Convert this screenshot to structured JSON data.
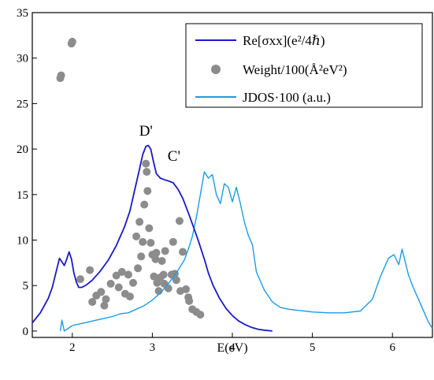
{
  "chart_data": {
    "type": "line",
    "title": "",
    "xlabel": "E(eV)",
    "ylabel": "",
    "xlim": [
      1.5,
      6.5
    ],
    "ylim": [
      -0.7,
      35
    ],
    "grid": false,
    "legend_position": "top-right",
    "x_ticks": [
      "2",
      "3",
      "4",
      "5",
      "6"
    ],
    "y_ticks": [
      "0",
      "5",
      "10",
      "15",
      "20",
      "25",
      "30",
      "35"
    ],
    "annotations": [
      {
        "text": "D'",
        "x": 2.92,
        "y": 21.5
      },
      {
        "text": "C'",
        "x": 3.27,
        "y": 18.7
      }
    ],
    "colors": {
      "sigma": "#1a1ac8",
      "weight": "#8c8c8c",
      "jdos": "#1e9be6"
    },
    "series": [
      {
        "name": "Re[σxx](e²/4ℏ)",
        "kind": "line",
        "x": [
          1.5,
          1.6,
          1.7,
          1.75,
          1.8,
          1.84,
          1.87,
          1.9,
          1.93,
          1.96,
          1.99,
          2.02,
          2.05,
          2.08,
          2.12,
          2.18,
          2.25,
          2.35,
          2.45,
          2.55,
          2.65,
          2.72,
          2.78,
          2.84,
          2.88,
          2.92,
          2.95,
          2.98,
          3.01,
          3.05,
          3.1,
          3.16,
          3.2,
          3.26,
          3.32,
          3.38,
          3.45,
          3.52,
          3.58,
          3.62,
          3.66,
          3.7,
          3.76,
          3.84,
          3.92,
          4.0,
          4.08,
          4.16,
          4.24,
          4.32,
          4.4,
          4.5
        ],
        "y": [
          0.9,
          2.0,
          3.6,
          4.8,
          6.6,
          8.0,
          7.6,
          7.2,
          7.9,
          8.7,
          7.9,
          6.4,
          5.4,
          4.8,
          4.8,
          5.1,
          5.6,
          6.6,
          7.8,
          9.4,
          11.4,
          13.2,
          15.5,
          17.8,
          19.4,
          20.3,
          20.4,
          20.0,
          18.8,
          17.3,
          16.8,
          16.6,
          16.5,
          16.3,
          15.6,
          14.6,
          13.0,
          11.3,
          9.8,
          8.7,
          7.6,
          6.4,
          5.0,
          3.6,
          2.5,
          1.7,
          1.1,
          0.7,
          0.4,
          0.2,
          0.1,
          0.0
        ]
      },
      {
        "name": "Weight/100(Å²eV²)",
        "kind": "scatter",
        "x": [
          1.85,
          1.86,
          1.99,
          2.0,
          2.1,
          2.22,
          2.3,
          2.36,
          2.42,
          2.48,
          2.55,
          2.62,
          2.66,
          2.72,
          2.76,
          2.8,
          2.84,
          2.86,
          2.88,
          2.9,
          2.92,
          2.93,
          2.94,
          2.96,
          2.98,
          3.0,
          3.02,
          3.04,
          3.06,
          3.08,
          3.1,
          3.12,
          3.14,
          3.16,
          3.2,
          3.24,
          3.26,
          3.3,
          3.34,
          3.38,
          3.42,
          3.46,
          3.5,
          2.25,
          2.4,
          2.58,
          2.7,
          2.82,
          3.05,
          3.15,
          3.28,
          3.35,
          3.45,
          3.55,
          3.6
        ],
        "y": [
          27.8,
          28.1,
          31.6,
          31.8,
          5.7,
          6.7,
          3.9,
          4.3,
          3.5,
          5.2,
          6.1,
          6.5,
          4.1,
          3.8,
          5.3,
          10.4,
          12.0,
          8.2,
          9.8,
          13.9,
          18.4,
          17.5,
          15.4,
          11.3,
          9.7,
          8.4,
          6.0,
          7.9,
          5.3,
          4.4,
          5.9,
          7.7,
          6.2,
          8.8,
          4.7,
          6.2,
          9.8,
          5.6,
          12.1,
          8.7,
          4.6,
          3.3,
          2.4,
          3.2,
          2.8,
          4.8,
          6.2,
          6.9,
          8.6,
          5.2,
          6.3,
          4.4,
          3.7,
          2.1,
          1.8
        ]
      },
      {
        "name": "JDOS·100 (a.u.)",
        "kind": "line",
        "x": [
          1.85,
          1.87,
          1.9,
          1.95,
          2.0,
          2.05,
          2.1,
          2.2,
          2.3,
          2.4,
          2.5,
          2.6,
          2.7,
          2.8,
          2.9,
          3.0,
          3.1,
          3.2,
          3.3,
          3.4,
          3.45,
          3.5,
          3.55,
          3.6,
          3.65,
          3.7,
          3.75,
          3.8,
          3.85,
          3.9,
          3.95,
          4.0,
          4.05,
          4.1,
          4.15,
          4.2,
          4.25,
          4.3,
          4.4,
          4.5,
          4.6,
          4.7,
          4.8,
          4.9,
          5.0,
          5.2,
          5.4,
          5.6,
          5.75,
          5.85,
          5.95,
          6.02,
          6.08,
          6.12,
          6.16,
          6.2,
          6.25,
          6.3,
          6.35,
          6.4,
          6.45,
          6.5
        ],
        "y": [
          0.0,
          1.2,
          0.0,
          0.3,
          0.6,
          0.7,
          0.8,
          1.0,
          1.2,
          1.4,
          1.6,
          1.9,
          2.0,
          2.4,
          2.8,
          3.4,
          4.2,
          5.2,
          6.4,
          7.8,
          9.0,
          10.4,
          12.5,
          15.0,
          17.5,
          16.8,
          17.2,
          15.0,
          14.0,
          16.2,
          15.8,
          14.2,
          15.8,
          14.0,
          12.0,
          10.5,
          9.5,
          6.5,
          4.5,
          3.2,
          2.6,
          2.4,
          2.3,
          2.2,
          2.1,
          2.0,
          2.0,
          2.2,
          3.5,
          6.0,
          8.0,
          8.4,
          7.3,
          9.0,
          7.6,
          6.2,
          5.0,
          4.0,
          3.0,
          2.0,
          1.0,
          0.3
        ]
      }
    ]
  }
}
